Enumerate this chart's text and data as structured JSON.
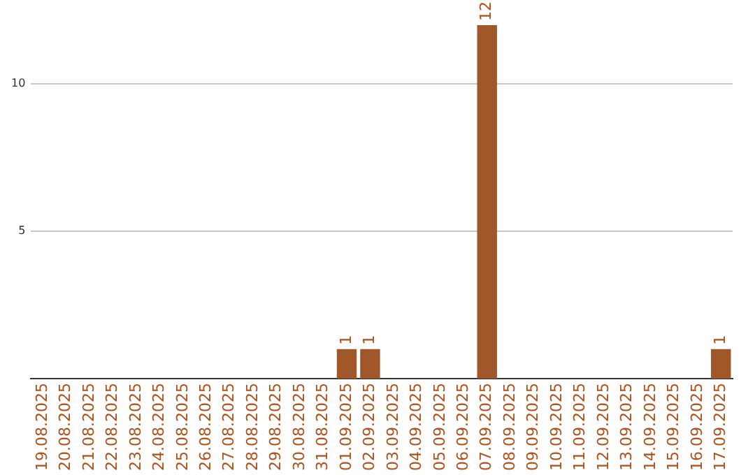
{
  "chart_data": {
    "type": "bar",
    "categories": [
      "19.08.2025",
      "20.08.2025",
      "21.08.2025",
      "22.08.2025",
      "23.08.2025",
      "24.08.2025",
      "25.08.2025",
      "26.08.2025",
      "27.08.2025",
      "28.08.2025",
      "29.08.2025",
      "30.08.2025",
      "31.08.2025",
      "01.09.2025",
      "02.09.2025",
      "03.09.2025",
      "04.09.2025",
      "05.09.2025",
      "06.09.2025",
      "07.09.2025",
      "08.09.2025",
      "09.09.2025",
      "10.09.2025",
      "11.09.2025",
      "12.09.2025",
      "13.09.2025",
      "14.09.2025",
      "15.09.2025",
      "16.09.2025",
      "17.09.2025"
    ],
    "values": [
      0,
      0,
      0,
      0,
      0,
      0,
      0,
      0,
      0,
      0,
      0,
      0,
      0,
      1,
      1,
      0,
      0,
      0,
      0,
      12,
      0,
      0,
      0,
      0,
      0,
      0,
      0,
      0,
      0,
      1
    ],
    "value_labels": [
      null,
      null,
      null,
      null,
      null,
      null,
      null,
      null,
      null,
      null,
      null,
      null,
      null,
      "1",
      "1",
      null,
      null,
      null,
      null,
      "12",
      null,
      null,
      null,
      null,
      null,
      null,
      null,
      null,
      null,
      "1"
    ],
    "color": "#a0572a",
    "ylim": [
      0,
      12
    ],
    "yticks": [
      5,
      10
    ],
    "grid": "y",
    "legend": false
  }
}
